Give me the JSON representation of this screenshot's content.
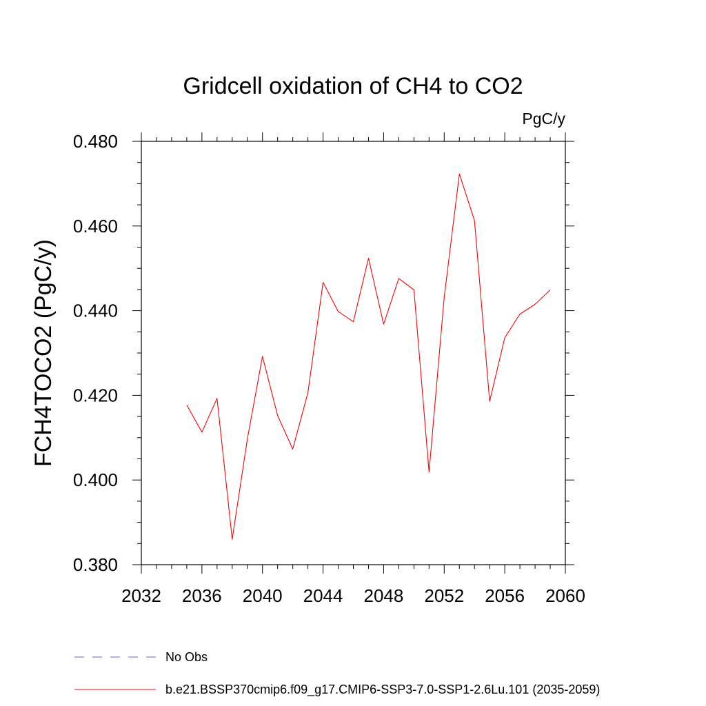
{
  "chart_data": {
    "type": "line",
    "title": "Gridcell oxidation of CH4 to CO2",
    "units_label": "PgC/y",
    "xlabel": "",
    "ylabel": "FCH4TOCO2  (PgC/y)",
    "xlim": [
      2032,
      2060
    ],
    "ylim": [
      0.38,
      0.48
    ],
    "x_ticks": [
      2032,
      2036,
      2040,
      2044,
      2048,
      2052,
      2056,
      2060
    ],
    "x_tick_labels": [
      "2032",
      "2036",
      "2040",
      "2044",
      "2048",
      "2052",
      "2056",
      "2060"
    ],
    "y_ticks": [
      0.38,
      0.4,
      0.42,
      0.44,
      0.46,
      0.48
    ],
    "y_tick_labels": [
      "0.380",
      "0.400",
      "0.420",
      "0.440",
      "0.460",
      "0.480"
    ],
    "grid": false,
    "legend_position": "bottom",
    "series": [
      {
        "name": "b.e21.BSSP370cmip6.f09_g17.CMIP6-SSP3-7.0-SSP1-2.6Lu.101 (2035-2059)",
        "color": "#ff0000",
        "style": "solid",
        "x": [
          2035,
          2036,
          2037,
          2038,
          2039,
          2040,
          2041,
          2042,
          2043,
          2044,
          2045,
          2046,
          2047,
          2048,
          2049,
          2050,
          2051,
          2052,
          2053,
          2054,
          2055,
          2056,
          2057,
          2058,
          2059
        ],
        "values": [
          0.4177,
          0.4113,
          0.4193,
          0.386,
          0.4097,
          0.4292,
          0.4152,
          0.4073,
          0.4206,
          0.4467,
          0.4398,
          0.4374,
          0.4524,
          0.4368,
          0.4476,
          0.4449,
          0.4018,
          0.4432,
          0.4723,
          0.4613,
          0.4186,
          0.4336,
          0.4392,
          0.4415,
          0.4449
        ]
      },
      {
        "name": "No Obs",
        "color": "#6a5acd",
        "style": "dashed",
        "x": [],
        "values": []
      }
    ]
  }
}
